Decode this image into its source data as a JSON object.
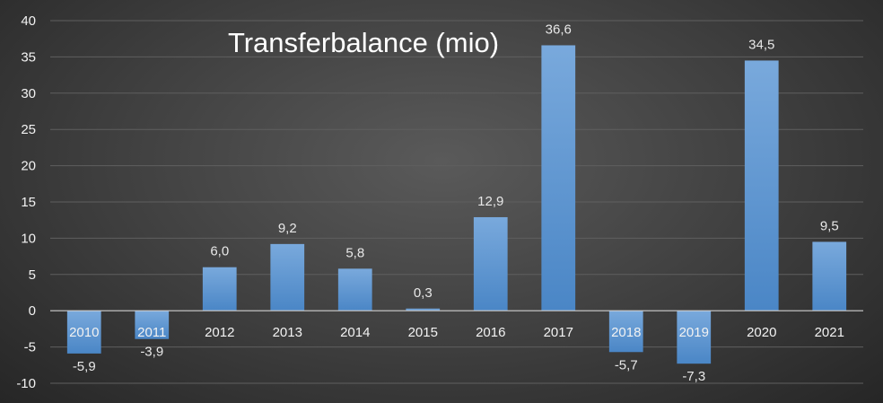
{
  "chart_data": {
    "type": "bar",
    "title": "Transferbalance (mio)",
    "xlabel": "",
    "ylabel": "",
    "categories": [
      "2010",
      "2011",
      "2012",
      "2013",
      "2014",
      "2015",
      "2016",
      "2017",
      "2018",
      "2019",
      "2020",
      "2021"
    ],
    "values": [
      -5.9,
      -3.9,
      6.0,
      9.2,
      5.8,
      0.3,
      12.9,
      36.6,
      -5.7,
      -7.3,
      34.5,
      9.5
    ],
    "data_labels": [
      "-5,9",
      "-3,9",
      "6,0",
      "9,2",
      "5,8",
      "0,3",
      "12,9",
      "36,6",
      "-5,7",
      "-7,3",
      "34,5",
      "9,5"
    ],
    "ylim": [
      -10,
      40
    ],
    "yticks": [
      -10,
      -5,
      0,
      5,
      10,
      15,
      20,
      25,
      30,
      35,
      40
    ],
    "grid": true,
    "legend": "none",
    "colors": {
      "bar_top": "#79a9dc",
      "bar_bottom": "#4a86c6",
      "grid": "#5f5f5f",
      "axis": "#d0d0d0",
      "text": "#f2f2f2"
    }
  }
}
